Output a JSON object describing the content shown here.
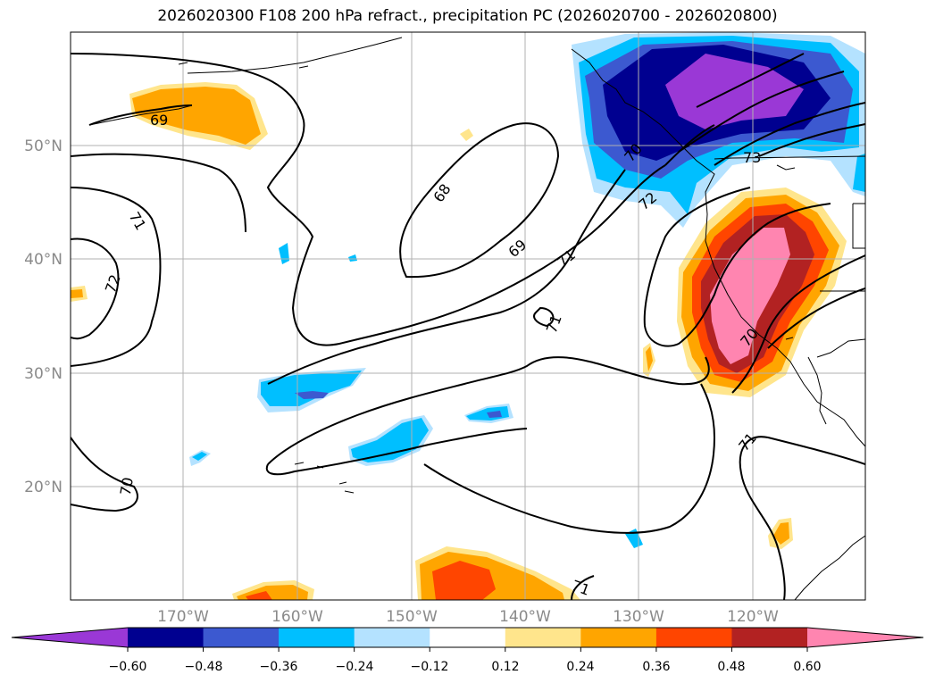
{
  "title": "2026020300 F108 200 hPa refract., precipitation PC (2026020700 - 2026020800)",
  "map": {
    "lon_ticks": [
      "170°W",
      "160°W",
      "150°W",
      "140°W",
      "130°W",
      "120°W"
    ],
    "lat_ticks": [
      "50°N",
      "40°N",
      "30°N",
      "20°N"
    ],
    "contour_labels": [
      "69",
      "68",
      "69",
      "71",
      "71",
      "72",
      "71",
      "70",
      "70",
      "73",
      "72",
      "70",
      "71",
      "71"
    ]
  },
  "colorbar": {
    "ticks": [
      "−0.60",
      "−0.48",
      "−0.36",
      "−0.24",
      "−0.12",
      "0.12",
      "0.24",
      "0.36",
      "0.48",
      "0.60"
    ],
    "colors": [
      "#9a38d6",
      "#000090",
      "#3c59d0",
      "#00bfff",
      "#b4e2ff",
      "#ffffff",
      "#ffe58c",
      "#ffa500",
      "#ff4500",
      "#b22222",
      "#ff85b0"
    ]
  }
}
